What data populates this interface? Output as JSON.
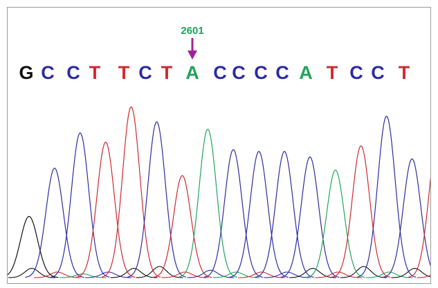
{
  "chart_data": {
    "type": "line",
    "title": "",
    "xlabel": "",
    "ylabel": "",
    "colors": {
      "A": "#1fa35b",
      "C": "#2b2ba3",
      "G": "#111111",
      "T": "#d0282e"
    },
    "marker": {
      "label": "2601",
      "base_index": 7,
      "label_color": "#1fa35b",
      "arrow_color": "#a3209a"
    },
    "bases": [
      "G",
      "C",
      "C",
      "T",
      "T",
      "C",
      "T",
      "A",
      "C",
      "C",
      "C",
      "C",
      "A",
      "T",
      "C",
      "C",
      "T"
    ],
    "peaks": [
      {
        "base": "G",
        "height": 0.33
      },
      {
        "base": "C",
        "height": 0.59
      },
      {
        "base": "C",
        "height": 0.78
      },
      {
        "base": "T",
        "height": 0.73
      },
      {
        "base": "T",
        "height": 0.92
      },
      {
        "base": "C",
        "height": 0.84
      },
      {
        "base": "T",
        "height": 0.55
      },
      {
        "base": "A",
        "height": 0.8
      },
      {
        "base": "C",
        "height": 0.69
      },
      {
        "base": "C",
        "height": 0.68
      },
      {
        "base": "C",
        "height": 0.68
      },
      {
        "base": "C",
        "height": 0.65
      },
      {
        "base": "A",
        "height": 0.58
      },
      {
        "base": "T",
        "height": 0.71
      },
      {
        "base": "C",
        "height": 0.87
      },
      {
        "base": "C",
        "height": 0.64
      },
      {
        "base": "T",
        "height": 0.74
      }
    ],
    "background_peaks": [
      {
        "base": "G",
        "height": 0.05
      },
      {
        "base": "T",
        "height": 0.03
      },
      {
        "base": "A",
        "height": 0.02
      },
      {
        "base": "C",
        "height": 0.03
      },
      {
        "base": "G",
        "height": 0.05
      },
      {
        "base": "G",
        "height": 0.06
      },
      {
        "base": "T",
        "height": 0.03
      },
      {
        "base": "C",
        "height": 0.04
      },
      {
        "base": "A",
        "height": 0.03
      },
      {
        "base": "T",
        "height": 0.03
      },
      {
        "base": "C",
        "height": 0.03
      },
      {
        "base": "G",
        "height": 0.05
      },
      {
        "base": "T",
        "height": 0.03
      },
      {
        "base": "G",
        "height": 0.06
      },
      {
        "base": "A",
        "height": 0.03
      },
      {
        "base": "G",
        "height": 0.05
      },
      {
        "base": "T",
        "height": 0.04
      }
    ]
  }
}
